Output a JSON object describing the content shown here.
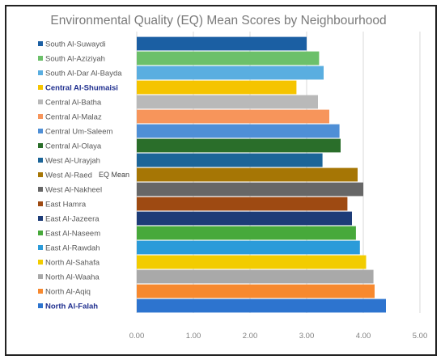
{
  "chart_data": {
    "type": "bar",
    "orientation": "horizontal",
    "title": "Environmental Quality (EQ) Mean Scores by Neighbourhood",
    "series_label": "EQ Mean",
    "xlim": [
      0,
      5
    ],
    "x_ticks": [
      "0.00",
      "1.00",
      "2.00",
      "3.00",
      "4.00",
      "5.00"
    ],
    "grid": true,
    "categories": [
      "South Al-Suwaydi",
      "South Al-Aziziyah",
      "South Al-Dar Al-Bayda",
      "Central Al-Shumaisi",
      "Central Al-Batha",
      "Central Al-Malaz",
      "Central Um-Saleem",
      "Central Al-Olaya",
      "West Al-Urayjah",
      "West Al-Raed",
      "West Al-Nakheel",
      "East Hamra",
      "East Al-Jazeera",
      "East Al-Naseem",
      "East Al-Rawdah",
      "North Al-Sahafa",
      "North Al-Waaha",
      "North Al-Aqiq",
      "North Al-Falah"
    ],
    "values": [
      3.0,
      3.22,
      3.3,
      2.82,
      3.2,
      3.4,
      3.58,
      3.6,
      3.28,
      3.9,
      4.0,
      3.72,
      3.8,
      3.87,
      3.94,
      4.05,
      4.18,
      4.2,
      4.4
    ],
    "colors": [
      "#1b5fa3",
      "#6cc06a",
      "#5aaee0",
      "#f5c400",
      "#b9b9b9",
      "#f7955b",
      "#4f8fd6",
      "#2a6e2a",
      "#1c6598",
      "#a67605",
      "#676767",
      "#9e4a12",
      "#1d3c78",
      "#47a93b",
      "#2b9bd9",
      "#f2cc00",
      "#a9a9a9",
      "#f7892f",
      "#2d74cf"
    ],
    "highlighted": [
      "Central Al-Shumaisi",
      "North Al-Falah"
    ]
  }
}
